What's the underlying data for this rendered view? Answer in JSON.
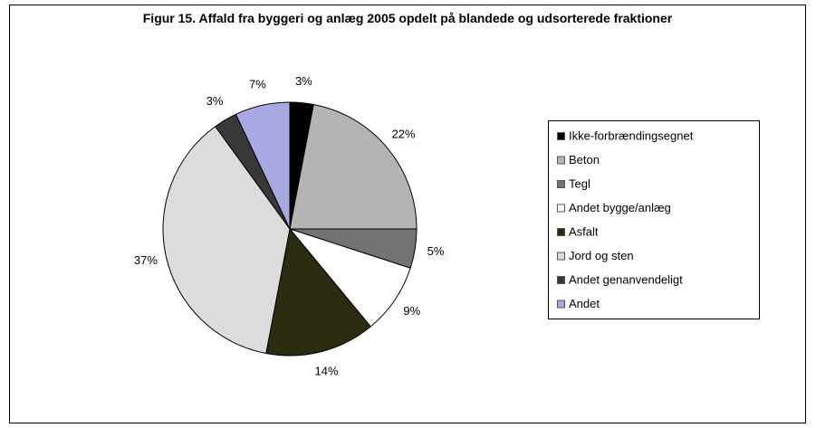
{
  "chart_data": {
    "type": "pie",
    "title": "Figur 15. Affald fra byggeri og anlæg 2005 opdelt på blandede og udsorterede fraktioner",
    "categories": [
      "Ikke-forbrændingsegnet",
      "Beton",
      "Tegl",
      "Andet bygge/anlæg",
      "Asfalt",
      "Jord og sten",
      "Andet genanvendeligt",
      "Andet"
    ],
    "values": [
      3,
      22,
      5,
      9,
      14,
      37,
      3,
      7
    ],
    "value_labels": [
      "3%",
      "22%",
      "5%",
      "9%",
      "14%",
      "37%",
      "3%",
      "7%"
    ],
    "colors": [
      "#000000",
      "#b4b4b4",
      "#737373",
      "#ffffff",
      "#2b2b0f",
      "#dcdcdc",
      "#383838",
      "#a9a9e3"
    ],
    "legend": "right"
  }
}
